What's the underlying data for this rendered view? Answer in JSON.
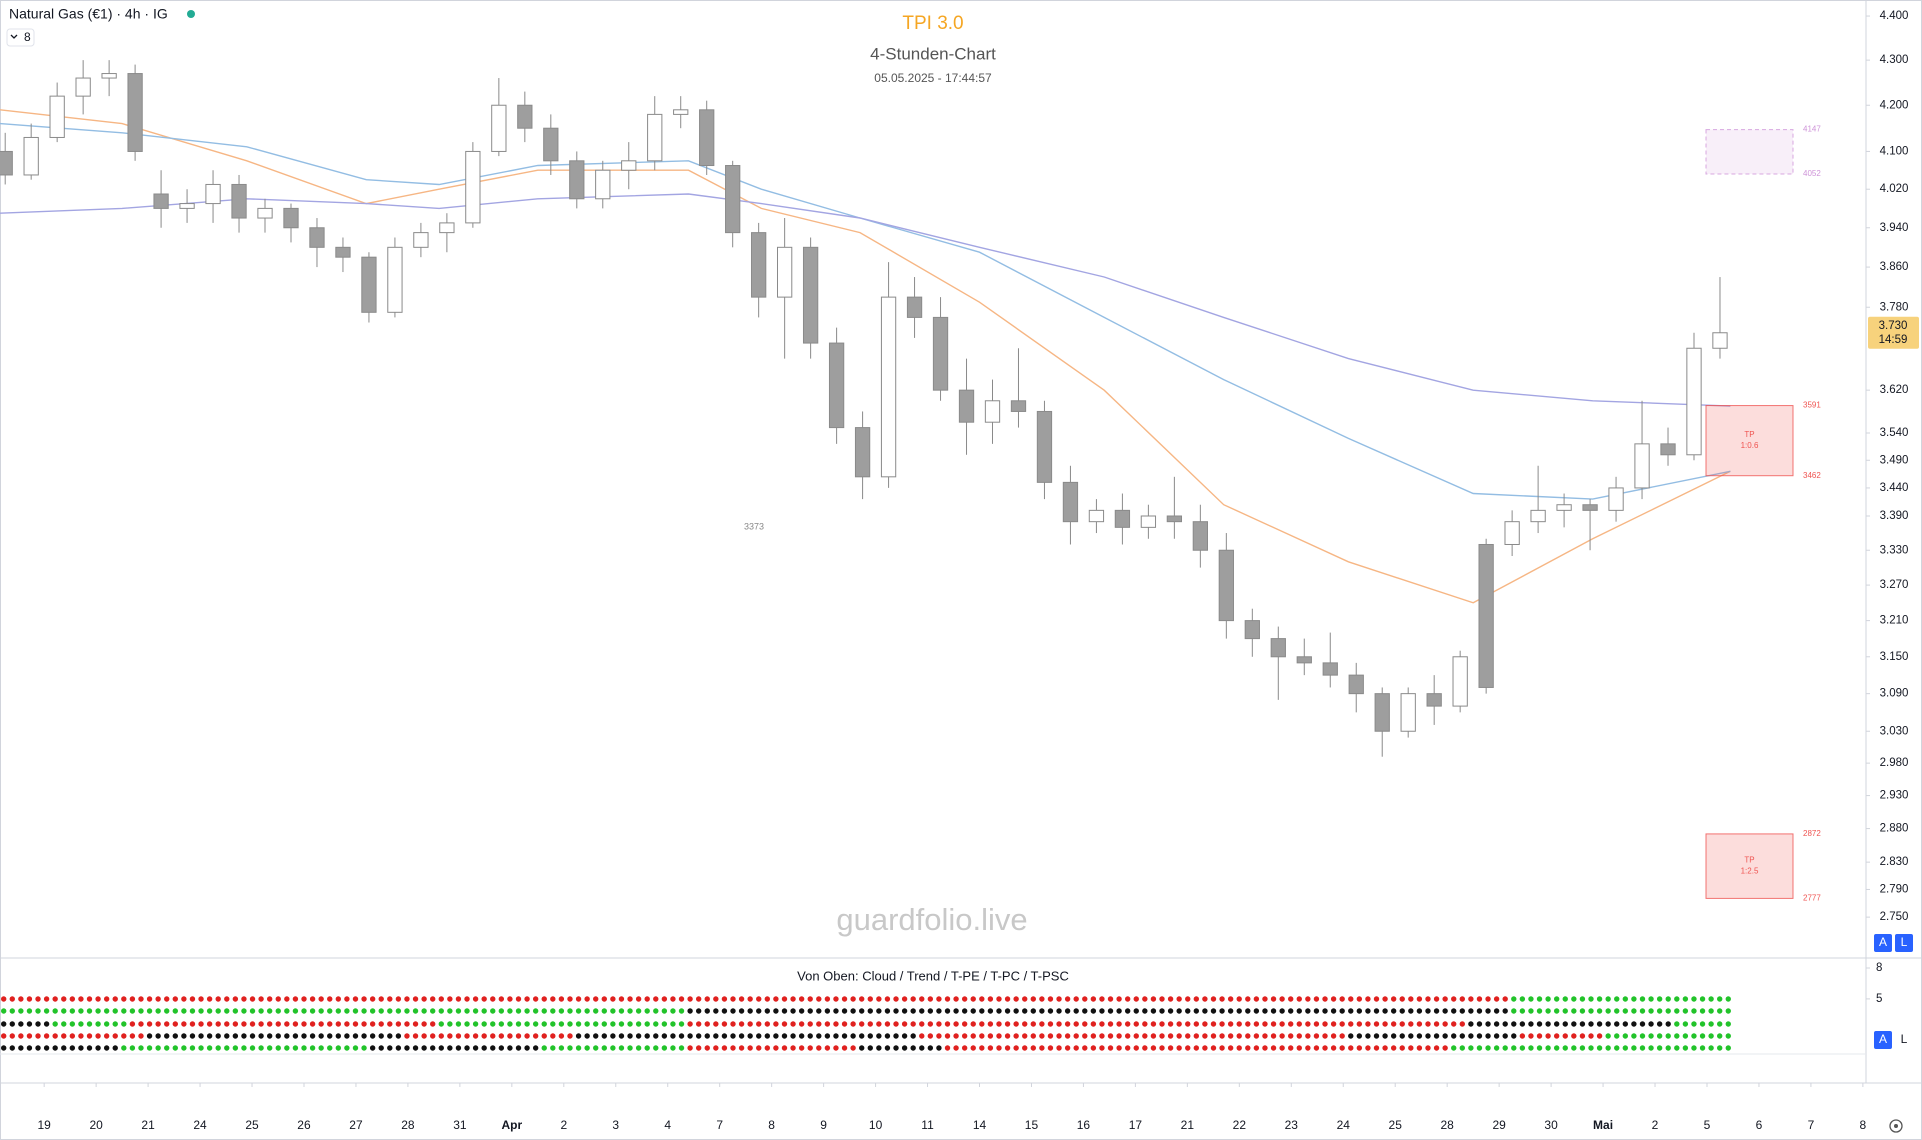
{
  "header": {
    "symbol": "Natural Gas (€1) · 4h · IG",
    "indicator_count": 8,
    "buttons": [
      "A",
      "L"
    ]
  },
  "chart_data": {
    "type": "candlestick",
    "title": "TPI 3.0",
    "subtitle": "4-Stunden-Chart",
    "timestamp": "05.05.2025 - 17:44:57",
    "watermark": "guardfolio.live",
    "annotation": "3373",
    "log_scale": true,
    "ylim": [
      2.692,
      4.437
    ],
    "yticks": [
      {
        "value": 4.4,
        "label": "4.400"
      },
      {
        "value": 4.3,
        "label": "4.300"
      },
      {
        "value": 4.2,
        "label": "4.200"
      },
      {
        "value": 4.1,
        "label": "4.100"
      },
      {
        "value": 4.02,
        "label": "4.020"
      },
      {
        "value": 3.94,
        "label": "3.940"
      },
      {
        "value": 3.86,
        "label": "3.860"
      },
      {
        "value": 3.78,
        "label": "3.780"
      },
      {
        "value": 3.62,
        "label": "3.620"
      },
      {
        "value": 3.54,
        "label": "3.540"
      },
      {
        "value": 3.49,
        "label": "3.490"
      },
      {
        "value": 3.44,
        "label": "3.440"
      },
      {
        "value": 3.39,
        "label": "3.390"
      },
      {
        "value": 3.33,
        "label": "3.330"
      },
      {
        "value": 3.27,
        "label": "3.270"
      },
      {
        "value": 3.21,
        "label": "3.210"
      },
      {
        "value": 3.15,
        "label": "3.150"
      },
      {
        "value": 3.09,
        "label": "3.090"
      },
      {
        "value": 3.03,
        "label": "3.030"
      },
      {
        "value": 2.98,
        "label": "2.980"
      },
      {
        "value": 2.93,
        "label": "2.930"
      },
      {
        "value": 2.88,
        "label": "2.880"
      },
      {
        "value": 2.83,
        "label": "2.830"
      },
      {
        "value": 2.79,
        "label": "2.790"
      },
      {
        "value": 2.75,
        "label": "2.750"
      }
    ],
    "xlim": [
      -0.85,
      35.06
    ],
    "xticks": [
      {
        "value": 0,
        "label": "19"
      },
      {
        "value": 1,
        "label": "20"
      },
      {
        "value": 2,
        "label": "21"
      },
      {
        "value": 3,
        "label": "24"
      },
      {
        "value": 4,
        "label": "25"
      },
      {
        "value": 5,
        "label": "26"
      },
      {
        "value": 6,
        "label": "27"
      },
      {
        "value": 7,
        "label": "28"
      },
      {
        "value": 8,
        "label": "31"
      },
      {
        "value": 9,
        "label": "Apr"
      },
      {
        "value": 10,
        "label": "2"
      },
      {
        "value": 11,
        "label": "3"
      },
      {
        "value": 12,
        "label": "4"
      },
      {
        "value": 13,
        "label": "7"
      },
      {
        "value": 14,
        "label": "8"
      },
      {
        "value": 15,
        "label": "9"
      },
      {
        "value": 16,
        "label": "10"
      },
      {
        "value": 17,
        "label": "11"
      },
      {
        "value": 18,
        "label": "14"
      },
      {
        "value": 19,
        "label": "15"
      },
      {
        "value": 20,
        "label": "16"
      },
      {
        "value": 21,
        "label": "17"
      },
      {
        "value": 22,
        "label": "21"
      },
      {
        "value": 23,
        "label": "22"
      },
      {
        "value": 24,
        "label": "23"
      },
      {
        "value": 25,
        "label": "24"
      },
      {
        "value": 26,
        "label": "25"
      },
      {
        "value": 27,
        "label": "28"
      },
      {
        "value": 28,
        "label": "29"
      },
      {
        "value": 29,
        "label": "30"
      },
      {
        "value": 30,
        "label": "Mai"
      },
      {
        "value": 31,
        "label": "2"
      },
      {
        "value": 32,
        "label": "5"
      },
      {
        "value": 33,
        "label": "6"
      },
      {
        "value": 34,
        "label": "7"
      },
      {
        "value": 35,
        "label": "8"
      }
    ],
    "color_up": "#ffffff",
    "color_down": "#9e9e9e",
    "wick_color": "#8a8a8a",
    "candles": {
      "x": [
        -0.75,
        -0.25,
        0.25,
        0.75,
        1.25,
        1.75,
        2.25,
        2.75,
        3.25,
        3.75,
        4.25,
        4.75,
        5.25,
        5.75,
        6.25,
        6.75,
        7.25,
        7.75,
        8.25,
        8.75,
        9.25,
        9.75,
        10.25,
        10.75,
        11.25,
        11.75,
        12.25,
        12.75,
        13.25,
        13.75,
        14.25,
        14.75,
        15.25,
        15.75,
        16.25,
        16.75,
        17.25,
        17.75,
        18.25,
        18.75,
        19.25,
        19.75,
        20.25,
        20.75,
        21.25,
        21.75,
        22.25,
        22.75,
        23.25,
        23.75,
        24.25,
        24.75,
        25.25,
        25.75,
        26.25,
        26.75,
        27.25,
        27.75,
        28.25,
        28.75,
        29.25,
        29.75,
        30.25,
        30.75,
        31.25,
        31.75,
        32.25
      ],
      "open": [
        4.1,
        4.05,
        4.13,
        4.22,
        4.26,
        4.27,
        4.01,
        3.98,
        3.99,
        4.03,
        3.96,
        3.98,
        3.94,
        3.9,
        3.88,
        3.77,
        3.9,
        3.93,
        3.95,
        4.1,
        4.2,
        4.15,
        4.08,
        4.0,
        4.06,
        4.08,
        4.18,
        4.19,
        4.07,
        3.93,
        3.8,
        3.9,
        3.71,
        3.55,
        3.46,
        3.8,
        3.76,
        3.62,
        3.56,
        3.6,
        3.58,
        3.45,
        3.38,
        3.4,
        3.37,
        3.39,
        3.38,
        3.33,
        3.21,
        3.18,
        3.15,
        3.14,
        3.12,
        3.09,
        3.03,
        3.09,
        3.07,
        3.34,
        3.34,
        3.38,
        3.4,
        3.41,
        3.4,
        3.44,
        3.52,
        3.5,
        3.7
      ],
      "high": [
        4.14,
        4.16,
        4.25,
        4.3,
        4.3,
        4.29,
        4.06,
        4.02,
        4.06,
        4.05,
        4.0,
        3.99,
        3.96,
        3.92,
        3.89,
        3.92,
        3.95,
        3.97,
        4.12,
        4.26,
        4.23,
        4.18,
        4.1,
        4.08,
        4.12,
        4.22,
        4.22,
        4.21,
        4.08,
        3.95,
        3.96,
        3.92,
        3.74,
        3.58,
        3.87,
        3.84,
        3.8,
        3.68,
        3.64,
        3.7,
        3.6,
        3.48,
        3.42,
        3.43,
        3.41,
        3.46,
        3.41,
        3.36,
        3.23,
        3.2,
        3.18,
        3.19,
        3.14,
        3.1,
        3.1,
        3.12,
        3.16,
        3.35,
        3.4,
        3.48,
        3.43,
        3.42,
        3.46,
        3.6,
        3.55,
        3.73,
        3.84
      ],
      "low": [
        4.03,
        4.04,
        4.12,
        4.18,
        4.22,
        4.08,
        3.94,
        3.95,
        3.95,
        3.93,
        3.93,
        3.91,
        3.86,
        3.85,
        3.75,
        3.76,
        3.88,
        3.89,
        3.94,
        4.09,
        4.12,
        4.05,
        3.98,
        3.98,
        4.02,
        4.06,
        4.15,
        4.05,
        3.9,
        3.76,
        3.68,
        3.68,
        3.52,
        3.42,
        3.44,
        3.72,
        3.6,
        3.5,
        3.52,
        3.55,
        3.42,
        3.34,
        3.36,
        3.34,
        3.35,
        3.35,
        3.3,
        3.18,
        3.15,
        3.08,
        3.12,
        3.1,
        3.06,
        2.99,
        3.02,
        3.04,
        3.06,
        3.09,
        3.32,
        3.36,
        3.37,
        3.33,
        3.38,
        3.42,
        3.48,
        3.49,
        3.68
      ],
      "close": [
        4.05,
        4.13,
        4.22,
        4.26,
        4.27,
        4.1,
        3.98,
        3.99,
        4.03,
        3.96,
        3.98,
        3.94,
        3.9,
        3.88,
        3.77,
        3.9,
        3.93,
        3.95,
        4.1,
        4.2,
        4.15,
        4.08,
        4.0,
        4.06,
        4.08,
        4.18,
        4.19,
        4.07,
        3.93,
        3.8,
        3.9,
        3.71,
        3.55,
        3.46,
        3.8,
        3.76,
        3.62,
        3.56,
        3.6,
        3.58,
        3.45,
        3.38,
        3.4,
        3.37,
        3.39,
        3.38,
        3.33,
        3.21,
        3.18,
        3.15,
        3.14,
        3.12,
        3.09,
        3.03,
        3.09,
        3.07,
        3.15,
        3.1,
        3.38,
        3.4,
        3.41,
        3.4,
        3.44,
        3.52,
        3.5,
        3.7,
        3.73
      ]
    },
    "lines": {
      "x": [
        -0.85,
        1.5,
        3.9,
        6.2,
        7.6,
        9.5,
        12.4,
        13.8,
        15.7,
        18,
        20.4,
        22.7,
        25.1,
        27.5,
        29.8,
        32.45
      ],
      "series": [
        {
          "color": "#f6b684",
          "values": [
            4.19,
            4.16,
            4.08,
            3.99,
            4.02,
            4.06,
            4.06,
            3.98,
            3.93,
            3.79,
            3.62,
            3.41,
            3.31,
            3.24,
            3.35,
            3.47
          ]
        },
        {
          "color": "#93bde3",
          "values": [
            4.16,
            4.14,
            4.11,
            4.04,
            4.03,
            4.07,
            4.08,
            4.02,
            3.96,
            3.89,
            3.76,
            3.64,
            3.53,
            3.43,
            3.42,
            3.47
          ]
        },
        {
          "color": "#a3a5e2",
          "values": [
            3.97,
            3.98,
            4.0,
            3.99,
            3.98,
            4.0,
            4.01,
            3.99,
            3.96,
            3.9,
            3.84,
            3.76,
            3.68,
            3.62,
            3.6,
            3.59
          ]
        }
      ]
    },
    "last_price": {
      "value": 3.73,
      "label": "3.730",
      "countdown": "14:59"
    },
    "zones": [
      {
        "label": "TP",
        "ratio": "1:0.6",
        "top": 3.591,
        "bottom": 3.462,
        "value_labels": [
          "3591",
          "3462"
        ],
        "color": "#ef5350"
      },
      {
        "label": "TP",
        "ratio": "1:2.5",
        "top": 2.872,
        "bottom": 2.777,
        "value_labels": [
          "2872",
          "2777"
        ],
        "color": "#ef5350"
      },
      {
        "top": 4.147,
        "bottom": 4.052,
        "value_labels": [
          "4147",
          "4052"
        ],
        "color": "#ce93d8"
      }
    ],
    "lower_pane": {
      "title": "Von Oben: Cloud / Trend / T-PE / T-PC / T-PSC",
      "ylim": [
        -0.35,
        8.97
      ],
      "yticks": [
        8,
        5
      ],
      "state_colors": {
        "r": "#e0211f",
        "g": "#22c32a",
        "k": "#111111"
      },
      "rows": [
        {
          "runs": [
            {
              "state": "r",
              "count": 176
            },
            {
              "state": "g",
              "count": 26
            }
          ]
        },
        {
          "runs": [
            {
              "state": "g",
              "count": 80
            },
            {
              "state": "k",
              "count": 96
            },
            {
              "state": "g",
              "count": 26
            }
          ]
        },
        {
          "runs": [
            {
              "state": "k",
              "count": 6
            },
            {
              "state": "g",
              "count": 9
            },
            {
              "state": "r",
              "count": 36
            },
            {
              "state": "g",
              "count": 29
            },
            {
              "state": "r",
              "count": 91
            },
            {
              "state": "k",
              "count": 24
            },
            {
              "state": "g",
              "count": 7
            }
          ]
        },
        {
          "runs": [
            {
              "state": "r",
              "count": 17
            },
            {
              "state": "k",
              "count": 30
            },
            {
              "state": "r",
              "count": 20
            },
            {
              "state": "k",
              "count": 40
            },
            {
              "state": "r",
              "count": 50
            },
            {
              "state": "k",
              "count": 20
            },
            {
              "state": "r",
              "count": 10
            },
            {
              "state": "g",
              "count": 15
            }
          ]
        },
        {
          "runs": [
            {
              "state": "k",
              "count": 14
            },
            {
              "state": "g",
              "count": 29
            },
            {
              "state": "k",
              "count": 20
            },
            {
              "state": "g",
              "count": 17
            },
            {
              "state": "r",
              "count": 20
            },
            {
              "state": "k",
              "count": 10
            },
            {
              "state": "r",
              "count": 59
            },
            {
              "state": "g",
              "count": 33
            }
          ]
        }
      ]
    }
  }
}
